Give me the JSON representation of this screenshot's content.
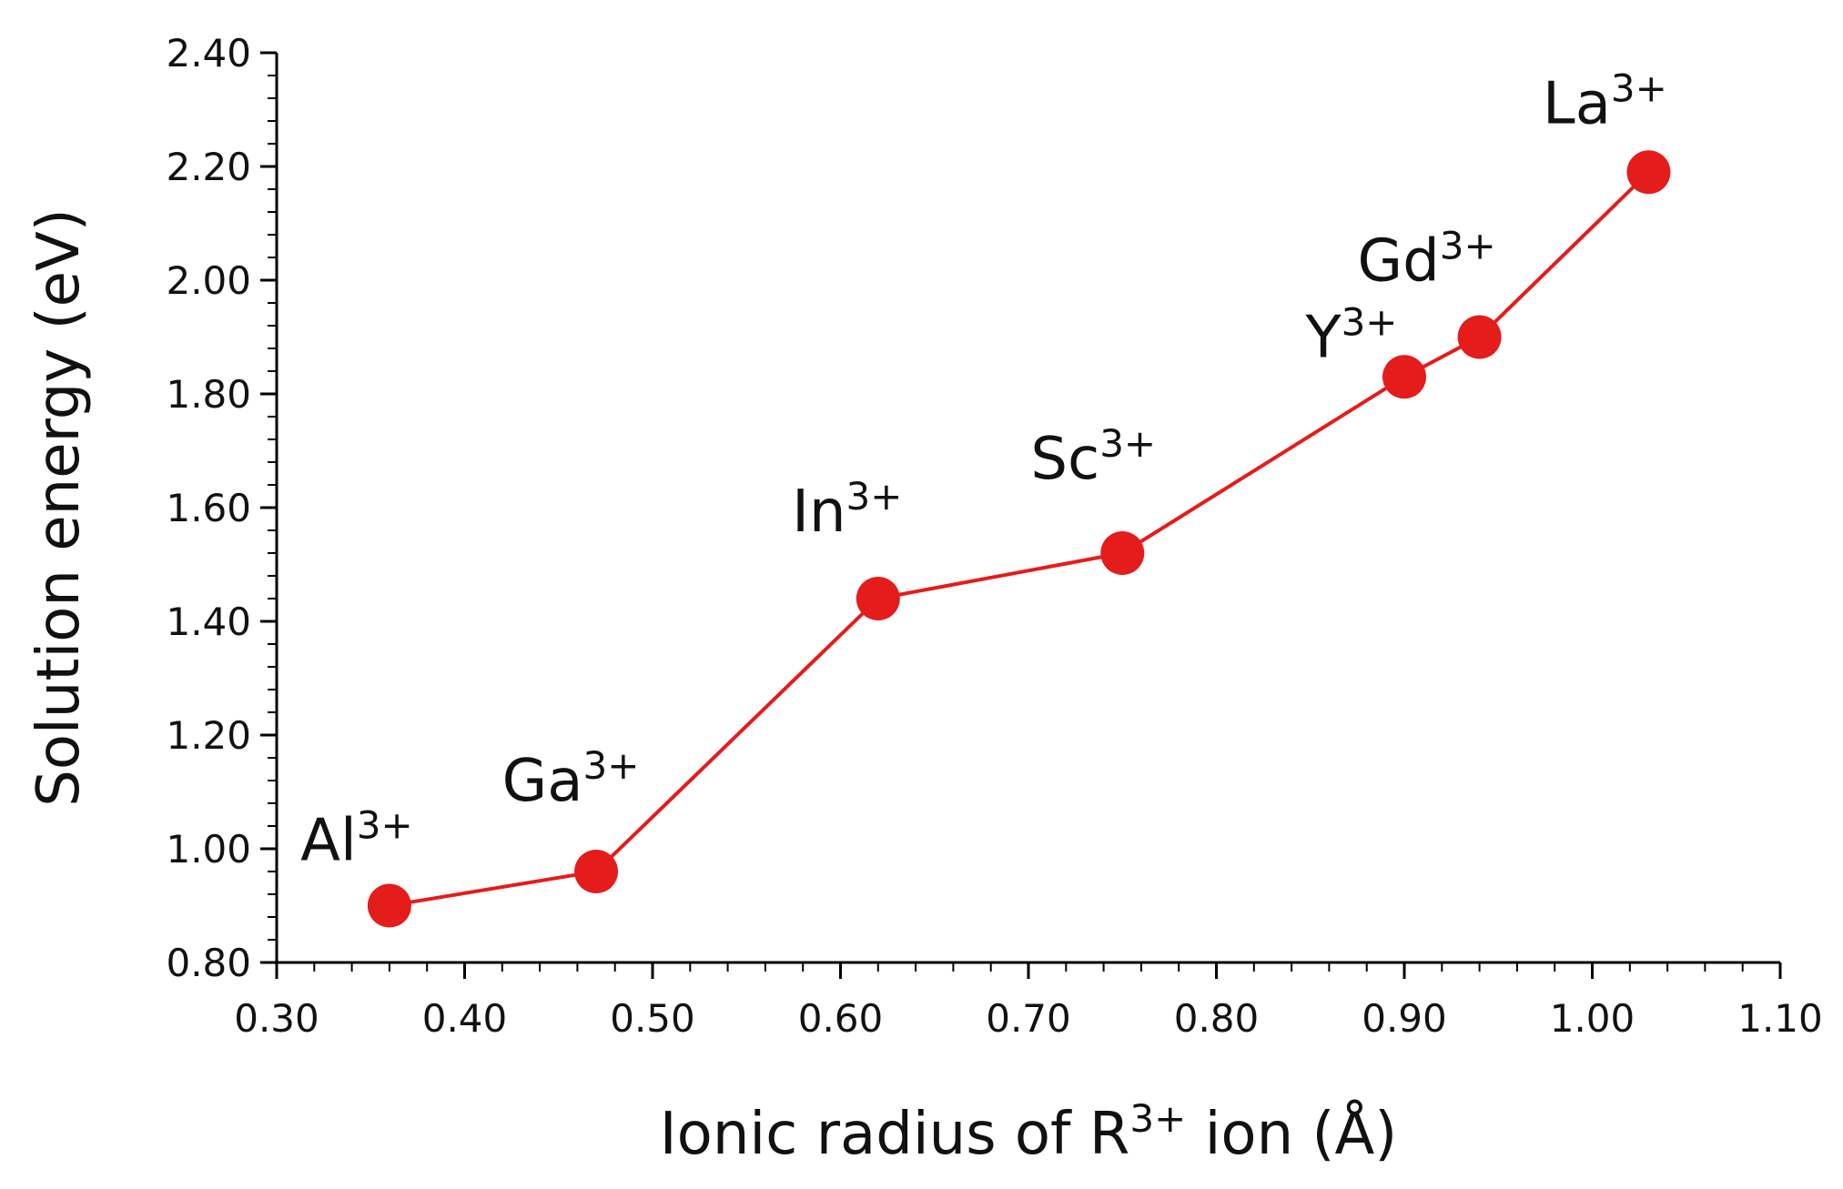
{
  "chart_data": {
    "type": "line",
    "title": "",
    "xlabel": {
      "main": "Ionic radius of R",
      "sup": "3+",
      "tail": " ion (Å)"
    },
    "ylabel": "Solution energy (eV)",
    "xlim": [
      0.3,
      1.1
    ],
    "ylim": [
      0.8,
      2.4
    ],
    "x_ticks": [
      0.3,
      0.4,
      0.5,
      0.6,
      0.7,
      0.8,
      0.9,
      1.0,
      1.1
    ],
    "y_ticks": [
      0.8,
      1.0,
      1.2,
      1.4,
      1.6,
      1.8,
      2.0,
      2.2,
      2.4
    ],
    "x_tick_labels": [
      "0.30",
      "0.40",
      "0.50",
      "0.60",
      "0.70",
      "0.80",
      "0.90",
      "1.00",
      "1.10"
    ],
    "y_tick_labels": [
      "0.80",
      "1.00",
      "1.20",
      "1.40",
      "1.60",
      "1.80",
      "2.00",
      "2.20",
      "2.40"
    ],
    "grid": false,
    "legend": "none",
    "color": "#e41c1c",
    "series": [
      {
        "points": [
          {
            "x": 0.36,
            "y": 0.9,
            "label": {
              "base": "Al",
              "sup": "3+"
            }
          },
          {
            "x": 0.47,
            "y": 0.96,
            "label": {
              "base": "Ga",
              "sup": "3+"
            }
          },
          {
            "x": 0.62,
            "y": 1.44,
            "label": {
              "base": "In",
              "sup": "3+"
            }
          },
          {
            "x": 0.75,
            "y": 1.52,
            "label": {
              "base": "Sc",
              "sup": "3+"
            }
          },
          {
            "x": 0.9,
            "y": 1.83,
            "label": {
              "base": "Y",
              "sup": "3+"
            }
          },
          {
            "x": 0.94,
            "y": 1.9,
            "label": {
              "base": "Gd",
              "sup": "3+"
            }
          },
          {
            "x": 1.03,
            "y": 2.19,
            "label": {
              "base": "La",
              "sup": "3+"
            }
          }
        ]
      }
    ]
  }
}
